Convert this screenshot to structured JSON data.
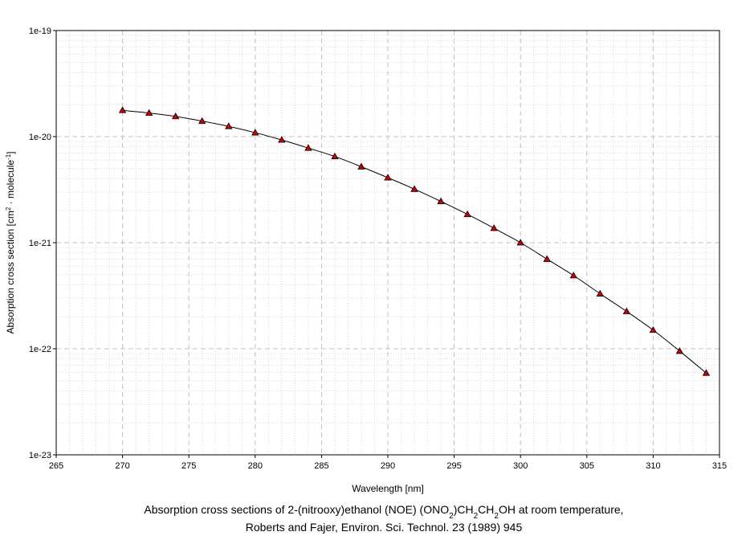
{
  "chart_data": {
    "type": "line",
    "title": "",
    "xlabel": "Wavelength [nm]",
    "ylabel": {
      "prefix": "Absorption cross section [cm",
      "sup1": "2",
      "middle": " · molecule",
      "sup2": "-1",
      "suffix": "]"
    },
    "xlim": [
      265,
      315
    ],
    "ylim": [
      1e-23,
      1e-19
    ],
    "y_scale": "log",
    "grid": true,
    "x_tick_labels": [
      "265",
      "270",
      "275",
      "280",
      "285",
      "290",
      "295",
      "300",
      "305",
      "310",
      "315"
    ],
    "y_tick_labels": [
      "1e-23",
      "1e-22",
      "1e-21",
      "1e-20",
      "1e-19"
    ],
    "series": [
      {
        "marker": "triangle",
        "line_color": "#000000",
        "marker_fill": "#cc0000",
        "x": [
          270,
          272,
          274,
          276,
          278,
          280,
          282,
          284,
          286,
          288,
          290,
          292,
          294,
          296,
          298,
          300,
          302,
          304,
          306,
          308,
          310,
          312,
          314
        ],
        "y": [
          1.77e-20,
          1.67e-20,
          1.55e-20,
          1.4e-20,
          1.25e-20,
          1.09e-20,
          9.3e-21,
          7.8e-21,
          6.5e-21,
          5.2e-21,
          4.1e-21,
          3.2e-21,
          2.45e-21,
          1.85e-21,
          1.37e-21,
          1e-21,
          7e-22,
          4.9e-22,
          3.3e-22,
          2.25e-22,
          1.5e-22,
          9.5e-23,
          5.9e-23
        ]
      }
    ]
  },
  "caption": {
    "line1": {
      "part1": "Absorption cross sections of 2-(nitrooxy)ethanol (NOE) (ONO",
      "sub1": "2",
      "part2": ")CH",
      "sub2": "2",
      "part3": "CH",
      "sub3": "2",
      "part4": "OH at room temperature,"
    },
    "line2": "Roberts and Fajer, Environ. Sci. Technol. 23 (1989) 945"
  },
  "colors": {
    "major_grid": "#c0c0c0",
    "minor_grid": "#d8d8d8",
    "axis": "#000000"
  }
}
